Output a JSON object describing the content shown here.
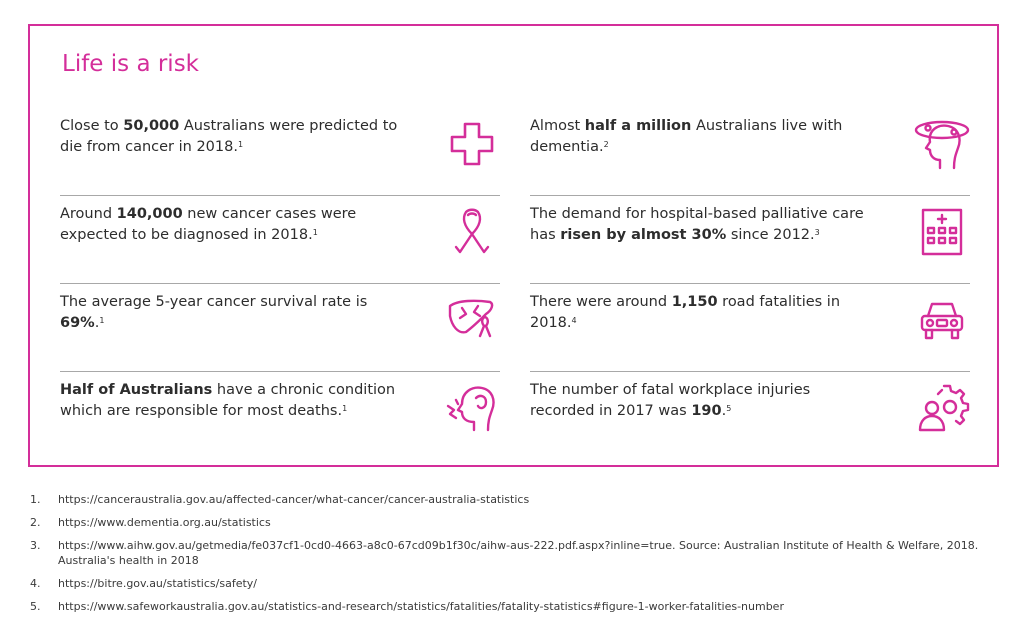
{
  "title": "Life is a risk",
  "accent_color": "#d42e9a",
  "stats_left": [
    {
      "pre": "Close to ",
      "bold": "50,000",
      "post": " Australians were predicted to die from cancer in 2018.",
      "bold2": "",
      "post2": "",
      "ref": "1",
      "icon": "medical-cross-icon"
    },
    {
      "pre": "Around ",
      "bold": "140,000",
      "post": " new cancer cases were expected to be diagnosed in 2018.",
      "bold2": "",
      "post2": "",
      "ref": "1",
      "icon": "cancer-ribbon-icon"
    },
    {
      "pre": "The average 5-year cancer survival rate is ",
      "bold": "69%",
      "post": ".",
      "bold2": "",
      "post2": "",
      "ref": "1",
      "icon": "liver-ribbon-icon"
    },
    {
      "pre": "",
      "bold": "Half of Australians",
      "post": " have a chronic condition which are responsible for most deaths.",
      "bold2": "",
      "post2": "",
      "ref": "1",
      "icon": "head-pain-icon"
    }
  ],
  "stats_right": [
    {
      "pre": "Almost ",
      "bold": "half a million",
      "post": " Australians live with dementia.",
      "bold2": "",
      "post2": "",
      "ref": "2",
      "icon": "dementia-head-icon"
    },
    {
      "pre": "The demand for hospital-based palliative care has ",
      "bold": "risen by almost 30%",
      "post": " since 2012.",
      "bold2": "",
      "post2": "",
      "ref": "3",
      "icon": "hospital-icon"
    },
    {
      "pre": "There were around ",
      "bold": "1,150",
      "post": " road fatalities in 2018.",
      "bold2": "",
      "post2": "",
      "ref": "4",
      "icon": "car-icon"
    },
    {
      "pre": "The number of fatal workplace injuries recorded in 2017 was ",
      "bold": "190",
      "post": ".",
      "bold2": "",
      "post2": "",
      "ref": "5",
      "icon": "workplace-gear-icon"
    }
  ],
  "footnotes": [
    {
      "num": "1.",
      "text": "https://canceraustralia.gov.au/affected-cancer/what-cancer/cancer-australia-statistics"
    },
    {
      "num": "2.",
      "text": "https://www.dementia.org.au/statistics"
    },
    {
      "num": "3.",
      "text": "https://www.aihw.gov.au/getmedia/fe037cf1-0cd0-4663-a8c0-67cd09b1f30c/aihw-aus-222.pdf.aspx?inline=true. Source: Australian Institute of Health & Welfare, 2018. Australia's health in 2018"
    },
    {
      "num": "4.",
      "text": "https://bitre.gov.au/statistics/safety/"
    },
    {
      "num": "5.",
      "text": "https://www.safeworkaustralia.gov.au/statistics-and-research/statistics/fatalities/fatality-statistics#figure-1-worker-fatalities-number"
    }
  ]
}
